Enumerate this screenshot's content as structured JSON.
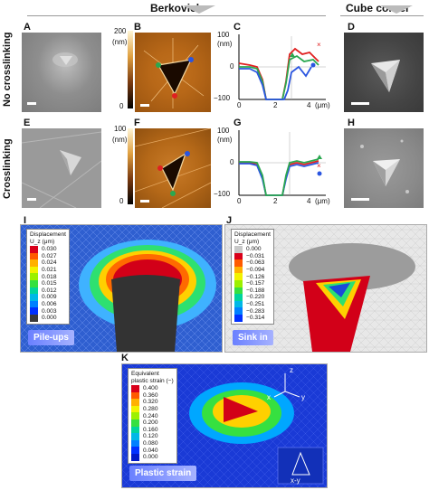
{
  "headers": {
    "berkovich": "Berkovich",
    "cube_corner": "Cube corner"
  },
  "row_labels": {
    "top": "No crosslinking",
    "bottom": "Crosslinking"
  },
  "panels": {
    "A": "A",
    "B": "B",
    "C": "C",
    "D": "D",
    "E": "E",
    "F": "F",
    "G": "G",
    "H": "H",
    "I": "I",
    "J": "J",
    "K": "K"
  },
  "height_colorbar": {
    "unit": "(nm)",
    "top_B": "200",
    "top_F": "100",
    "bottom": "0"
  },
  "profile_axes": {
    "C": {
      "yunit": "(nm)",
      "yticks": [
        "100",
        "0",
        "−100"
      ],
      "xticks": [
        "0",
        "2",
        "4"
      ],
      "xunit": "(μm)"
    },
    "G": {
      "yunit": "(nm)",
      "yticks": [
        "100",
        "0",
        "−100"
      ],
      "xticks": [
        "0",
        "2",
        "4"
      ],
      "xunit": "(μm)"
    }
  },
  "panel_I": {
    "legend_title1": "Displacement",
    "legend_title2": "U_z (μm)",
    "values": [
      "0.030",
      "0.027",
      "0.024",
      "0.021",
      "0.018",
      "0.015",
      "0.012",
      "0.009",
      "0.006",
      "0.003",
      "0.000"
    ],
    "colors": [
      "#d9001a",
      "#ff5a00",
      "#ffb000",
      "#f2f200",
      "#9cf000",
      "#36e040",
      "#00d49c",
      "#00b8e6",
      "#0080ff",
      "#0030ff",
      "#3a3a3a"
    ],
    "badge": "Pile-ups"
  },
  "panel_J": {
    "legend_title1": "Displacement",
    "legend_title2": "U_z (μm)",
    "values": [
      "0.000",
      "−0.031",
      "−0.063",
      "−0.094",
      "−0.126",
      "−0.157",
      "−0.188",
      "−0.220",
      "−0.251",
      "−0.283",
      "−0.314"
    ],
    "colors": [
      "#c8c8c8",
      "#d9001a",
      "#ff5a00",
      "#ffb000",
      "#f2f200",
      "#9cf000",
      "#36e040",
      "#00d49c",
      "#00b8e6",
      "#0080ff",
      "#0030ff"
    ],
    "badge": "Sink in"
  },
  "panel_K": {
    "legend_title1": "Equivalent",
    "legend_title2": "plastic strain (−)",
    "values": [
      "0.400",
      "0.360",
      "0.320",
      "0.280",
      "0.240",
      "0.200",
      "0.160",
      "0.120",
      "0.080",
      "0.040",
      "0.000"
    ],
    "colors": [
      "#d9001a",
      "#ff5a00",
      "#ffb000",
      "#f2f200",
      "#9cf000",
      "#36e040",
      "#00d49c",
      "#00b8e6",
      "#0080ff",
      "#0030ff",
      "#0018c8"
    ],
    "badge": "Plastic strain",
    "axes": {
      "z": "z",
      "x": "x",
      "y": "y",
      "plane": "x-y"
    }
  }
}
